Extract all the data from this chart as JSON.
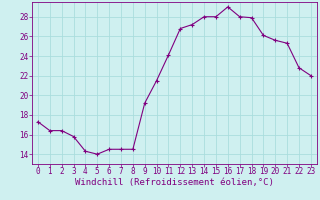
{
  "x": [
    0,
    1,
    2,
    3,
    4,
    5,
    6,
    7,
    8,
    9,
    10,
    11,
    12,
    13,
    14,
    15,
    16,
    17,
    18,
    19,
    20,
    21,
    22,
    23
  ],
  "y": [
    17.3,
    16.4,
    16.4,
    15.8,
    14.3,
    14.0,
    14.5,
    14.5,
    14.5,
    19.2,
    21.5,
    24.1,
    26.8,
    27.2,
    28.0,
    28.0,
    29.0,
    28.0,
    27.9,
    26.1,
    25.6,
    25.3,
    22.8,
    22.0
  ],
  "line_color": "#800080",
  "marker": "+",
  "marker_size": 3,
  "bg_color": "#cff0f0",
  "grid_color": "#aadddd",
  "xlabel": "Windchill (Refroidissement éolien,°C)",
  "xlabel_fontsize": 6.5,
  "tick_fontsize": 5.5,
  "ylim": [
    13,
    29.5
  ],
  "yticks": [
    14,
    16,
    18,
    20,
    22,
    24,
    26,
    28
  ],
  "xticks": [
    0,
    1,
    2,
    3,
    4,
    5,
    6,
    7,
    8,
    9,
    10,
    11,
    12,
    13,
    14,
    15,
    16,
    17,
    18,
    19,
    20,
    21,
    22,
    23
  ]
}
